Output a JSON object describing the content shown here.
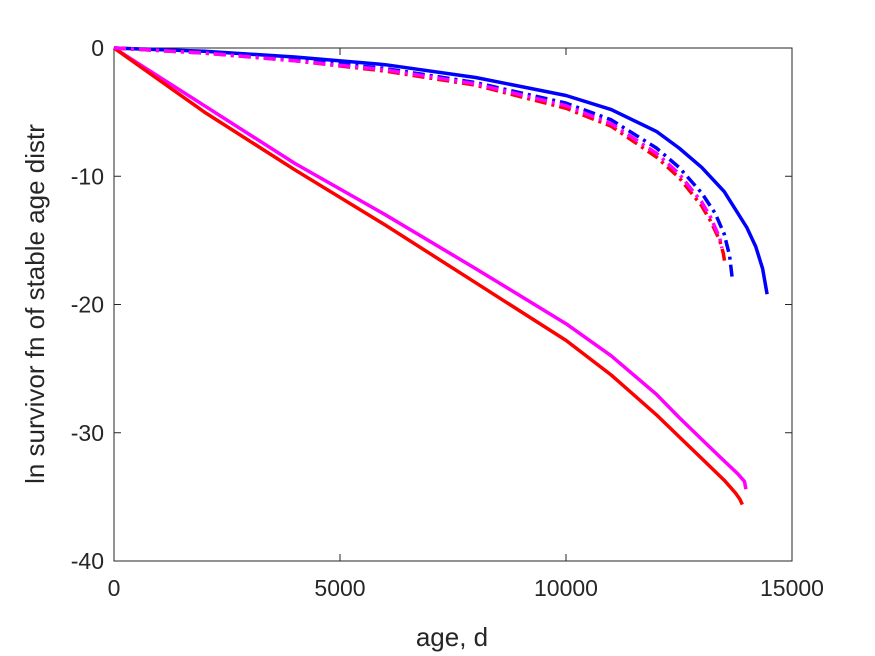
{
  "chart_data": {
    "type": "line",
    "title": "",
    "xlabel": "age, d",
    "ylabel": "ln survivor fn of stable age distr",
    "xlim": [
      0,
      15000
    ],
    "ylim": [
      -40,
      0
    ],
    "xticks": [
      0,
      5000,
      10000,
      15000
    ],
    "yticks": [
      0,
      -10,
      -20,
      -30,
      -40
    ],
    "xtick_labels": [
      "0",
      "5000",
      "10000",
      "15000"
    ],
    "ytick_labels": [
      "0",
      "-10",
      "-20",
      "-30",
      "-40"
    ],
    "grid": false,
    "legend": false,
    "series": [
      {
        "color": "#ff00ff",
        "style": "solid",
        "x": [
          0,
          2000,
          4000,
          6000,
          8000,
          10000,
          11000,
          12000,
          12500,
          13000,
          13500,
          13800,
          13950,
          13980
        ],
        "y": [
          0,
          -4.5,
          -9.0,
          -13.0,
          -17.2,
          -21.5,
          -24.0,
          -27.0,
          -28.8,
          -30.5,
          -32.2,
          -33.2,
          -33.8,
          -34.4
        ]
      },
      {
        "color": "#ff0000",
        "style": "solid",
        "x": [
          0,
          2000,
          4000,
          6000,
          8000,
          10000,
          11000,
          12000,
          12500,
          13000,
          13500,
          13750,
          13850,
          13900
        ],
        "y": [
          0,
          -5.0,
          -9.5,
          -13.8,
          -18.3,
          -22.8,
          -25.5,
          -28.6,
          -30.3,
          -32.0,
          -33.7,
          -34.7,
          -35.2,
          -35.6
        ]
      },
      {
        "color": "#0000ff",
        "style": "solid",
        "x": [
          0,
          2000,
          4000,
          6000,
          8000,
          10000,
          11000,
          12000,
          12500,
          13000,
          13500,
          14000,
          14200,
          14350,
          14450
        ],
        "y": [
          0,
          -0.25,
          -0.7,
          -1.3,
          -2.3,
          -3.7,
          -4.8,
          -6.5,
          -7.8,
          -9.3,
          -11.2,
          -14.0,
          -15.5,
          -17.2,
          -19.2
        ]
      },
      {
        "color": "#0000ff",
        "style": "dashdot",
        "x": [
          0,
          2000,
          4000,
          6000,
          8000,
          10000,
          11000,
          12000,
          12500,
          13000,
          13300,
          13500,
          13620,
          13680
        ],
        "y": [
          0,
          -0.35,
          -0.9,
          -1.6,
          -2.7,
          -4.3,
          -5.6,
          -7.8,
          -9.3,
          -11.3,
          -12.9,
          -14.5,
          -16.2,
          -18.0
        ]
      },
      {
        "color": "#ff0000",
        "style": "dashdot",
        "x": [
          0,
          2000,
          4000,
          6000,
          8000,
          10000,
          11000,
          12000,
          12500,
          13000,
          13200,
          13400,
          13480,
          13520
        ],
        "y": [
          0,
          -0.4,
          -1.0,
          -1.8,
          -2.9,
          -4.7,
          -6.1,
          -8.5,
          -10.1,
          -12.3,
          -13.5,
          -15.0,
          -16.0,
          -16.9
        ]
      },
      {
        "color": "#ff00ff",
        "style": "dashdot",
        "x": [
          0,
          2000,
          4000,
          6000,
          8000,
          10000,
          11000,
          12000,
          12500,
          13000,
          13200,
          13400,
          13450
        ],
        "y": [
          0,
          -0.4,
          -1.0,
          -1.7,
          -2.8,
          -4.5,
          -5.9,
          -8.2,
          -9.8,
          -12.0,
          -13.2,
          -14.8,
          -15.6
        ]
      }
    ]
  }
}
